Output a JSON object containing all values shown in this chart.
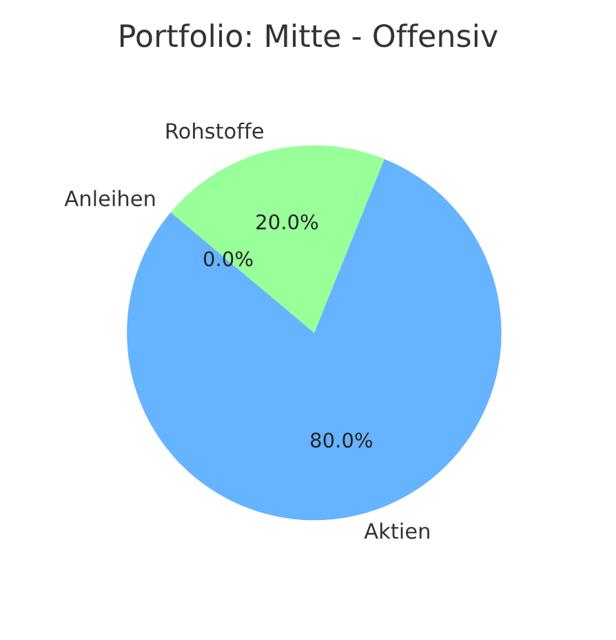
{
  "chart_data": {
    "type": "pie",
    "title": "Portfolio: Mitte - Offensiv",
    "categories": [
      "Aktien",
      "Rohstoffe",
      "Anleihen"
    ],
    "values": [
      80,
      20,
      0
    ],
    "value_labels": [
      "80.0%",
      "20.0%",
      "0.0%"
    ],
    "colors": [
      "#66b3ff",
      "#99ff99",
      "#ff9999"
    ]
  }
}
